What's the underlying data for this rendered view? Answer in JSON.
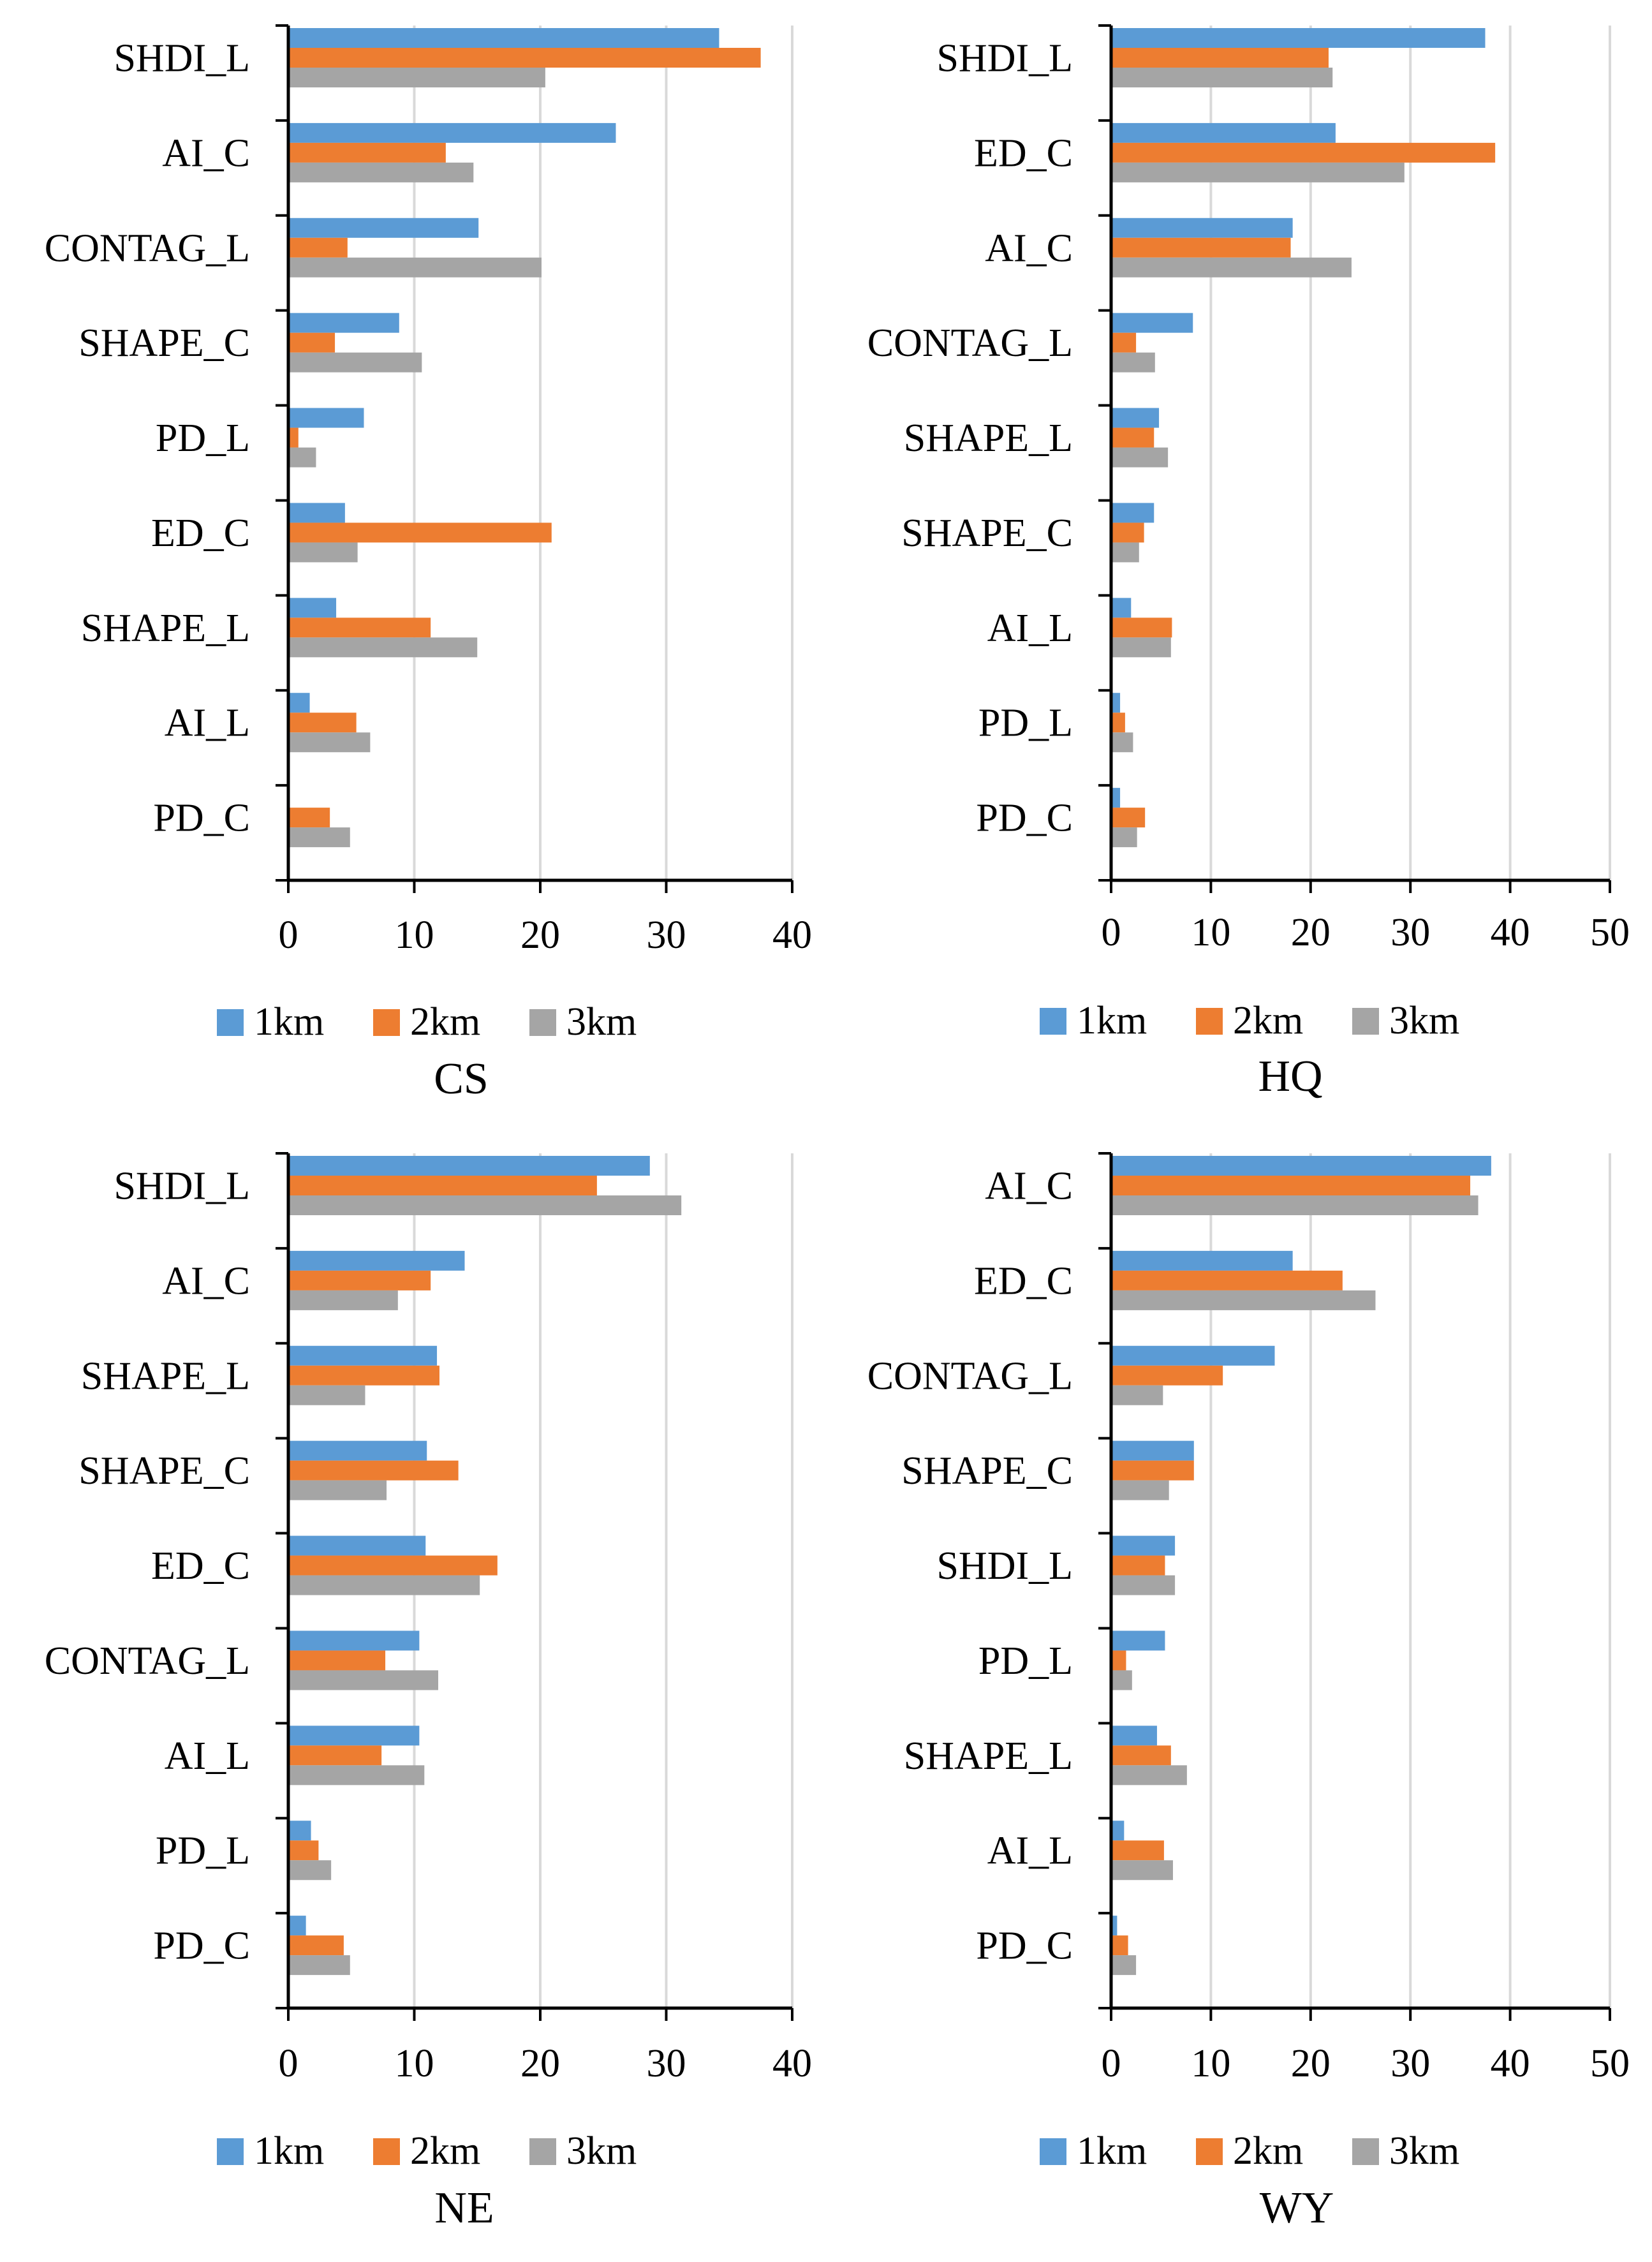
{
  "colors": {
    "1km": "#5B9BD5",
    "2km": "#ED7D31",
    "3km": "#A5A5A5",
    "grid": "#D9D9D9",
    "axis": "#000000"
  },
  "chart_data": [
    {
      "type": "bar",
      "orientation": "horizontal",
      "title": "CS",
      "categories": [
        "SHDI_L",
        "AI_C",
        "CONTAG_L",
        "SHAPE_C",
        "PD_L",
        "ED_C",
        "SHAPE_L",
        "AI_L",
        "PD_C"
      ],
      "series": [
        {
          "name": "1km",
          "values": [
            34.2,
            26.0,
            15.1,
            8.8,
            6.0,
            4.5,
            3.8,
            1.7,
            0.1
          ]
        },
        {
          "name": "2km",
          "values": [
            37.5,
            12.5,
            4.7,
            3.7,
            0.8,
            20.9,
            11.3,
            5.4,
            3.3
          ]
        },
        {
          "name": "3km",
          "values": [
            20.4,
            14.7,
            20.1,
            10.6,
            2.2,
            5.5,
            15.0,
            6.5,
            4.9
          ]
        }
      ],
      "xlim": [
        0,
        40
      ],
      "xticks": [
        "0",
        "10",
        "20",
        "30",
        "40"
      ],
      "grid": true,
      "legend": "bottom"
    },
    {
      "type": "bar",
      "orientation": "horizontal",
      "title": "HQ",
      "categories": [
        "SHDI_L",
        "ED_C",
        "AI_C",
        "CONTAG_L",
        "SHAPE_L",
        "SHAPE_C",
        "AI_L",
        "PD_L",
        "PD_C"
      ],
      "series": [
        {
          "name": "1km",
          "values": [
            37.5,
            22.5,
            18.2,
            8.2,
            4.8,
            4.3,
            2.0,
            0.9,
            0.9
          ]
        },
        {
          "name": "2km",
          "values": [
            21.8,
            38.5,
            18.0,
            2.5,
            4.3,
            3.3,
            6.1,
            1.4,
            3.4
          ]
        },
        {
          "name": "3km",
          "values": [
            22.2,
            29.4,
            24.1,
            4.4,
            5.7,
            2.8,
            6.0,
            2.2,
            2.6
          ]
        }
      ],
      "xlim": [
        0,
        50
      ],
      "xticks": [
        "0",
        "10",
        "20",
        "30",
        "40",
        "50"
      ],
      "grid": true,
      "legend": "bottom"
    },
    {
      "type": "bar",
      "orientation": "horizontal",
      "title": "NE",
      "categories": [
        "SHDI_L",
        "AI_C",
        "SHAPE_L",
        "SHAPE_C",
        "ED_C",
        "CONTAG_L",
        "AI_L",
        "PD_L",
        "PD_C"
      ],
      "series": [
        {
          "name": "1km",
          "values": [
            28.7,
            14.0,
            11.8,
            11.0,
            10.9,
            10.4,
            10.4,
            1.8,
            1.4
          ]
        },
        {
          "name": "2km",
          "values": [
            24.5,
            11.3,
            12.0,
            13.5,
            16.6,
            7.7,
            7.4,
            2.4,
            4.4
          ]
        },
        {
          "name": "3km",
          "values": [
            31.2,
            8.7,
            6.1,
            7.8,
            15.2,
            11.9,
            10.8,
            3.4,
            4.9
          ]
        }
      ],
      "xlim": [
        0,
        40
      ],
      "xticks": [
        "0",
        "10",
        "20",
        "30",
        "40"
      ],
      "grid": true,
      "legend": "bottom"
    },
    {
      "type": "bar",
      "orientation": "horizontal",
      "title": "WY",
      "categories": [
        "AI_C",
        "ED_C",
        "CONTAG_L",
        "SHAPE_C",
        "SHDI_L",
        "PD_L",
        "SHAPE_L",
        "AI_L",
        "PD_C"
      ],
      "series": [
        {
          "name": "1km",
          "values": [
            38.1,
            18.2,
            16.4,
            8.3,
            6.4,
            5.4,
            4.6,
            1.3,
            0.6
          ]
        },
        {
          "name": "2km",
          "values": [
            36.0,
            23.2,
            11.2,
            8.3,
            5.4,
            1.5,
            6.0,
            5.3,
            1.7
          ]
        },
        {
          "name": "3km",
          "values": [
            36.8,
            26.5,
            5.2,
            5.8,
            6.4,
            2.1,
            7.6,
            6.2,
            2.5
          ]
        }
      ],
      "xlim": [
        0,
        50
      ],
      "xticks": [
        "0",
        "10",
        "20",
        "30",
        "40",
        "50"
      ],
      "grid": true,
      "legend": "bottom"
    }
  ]
}
